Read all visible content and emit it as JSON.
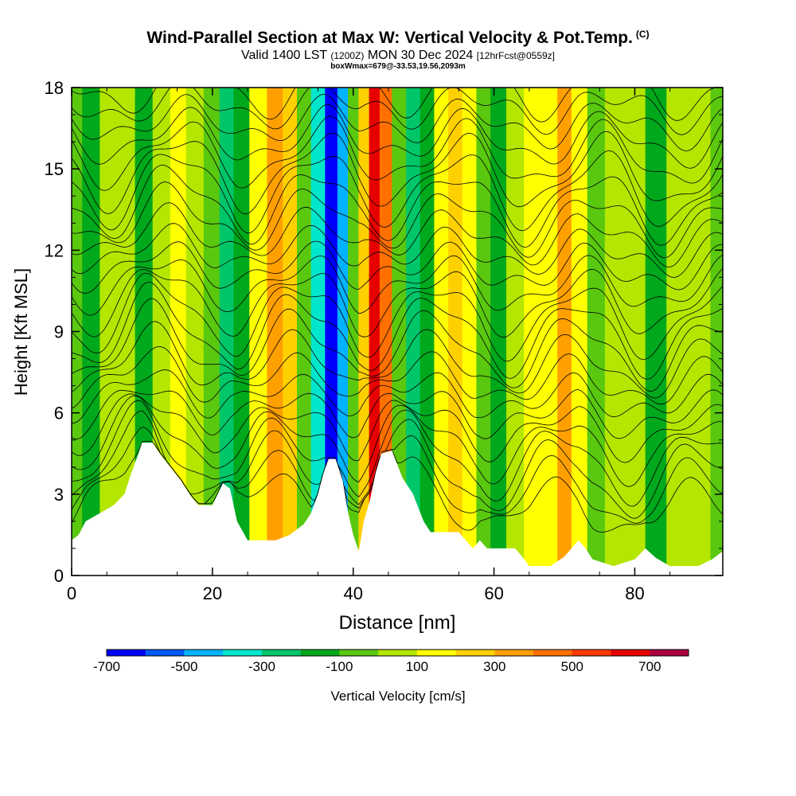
{
  "header": {
    "title": "Wind-Parallel Section at Max W: Vertical Velocity & Pot.Temp.",
    "copyright": "(C)",
    "subtitle_pre": "Valid 1400 LST ",
    "subtitle_zulu": "(1200Z)",
    "subtitle_mid": " MON 30 Dec 2024 ",
    "subtitle_fcst": "[12hrFcst@0559z]",
    "box_info": "boxWmax=679@-33.53,19.56,2093m"
  },
  "chart_data": {
    "type": "heatmap",
    "xlabel": "Distance [nm]",
    "ylabel": "Height [Kft MSL]",
    "xlim": [
      0,
      92.5
    ],
    "ylim": [
      0,
      18
    ],
    "x_ticks": [
      0,
      20,
      40,
      60,
      80
    ],
    "y_ticks": [
      0,
      3,
      6,
      9,
      12,
      15,
      18
    ],
    "colorbar": {
      "label": "Vertical Velocity [cm/s]",
      "bounds": [
        -700,
        800
      ],
      "tick_values": [
        -700,
        -500,
        -300,
        -100,
        100,
        300,
        500,
        700
      ],
      "tick_labels": [
        "-700",
        "-500",
        "-300",
        "-100",
        "100",
        "300",
        "500",
        "700"
      ],
      "colors": [
        "#0000ff",
        "#005bff",
        "#00b3ff",
        "#00e6cc",
        "#00c66a",
        "#00a81c",
        "#59c80f",
        "#b4e600",
        "#ffff00",
        "#ffd000",
        "#ffa000",
        "#ff7000",
        "#ff3a00",
        "#e60000",
        "#aa0040"
      ]
    },
    "velocity_bands": [
      {
        "x": 0,
        "value": -50
      },
      {
        "x": 3,
        "value": -150
      },
      {
        "x": 5,
        "value": 0
      },
      {
        "x": 8,
        "value": 30
      },
      {
        "x": 10,
        "value": -150
      },
      {
        "x": 13,
        "value": 50
      },
      {
        "x": 15,
        "value": 150
      },
      {
        "x": 17.5,
        "value": 80
      },
      {
        "x": 20,
        "value": -100
      },
      {
        "x": 22,
        "value": -280
      },
      {
        "x": 24,
        "value": -150
      },
      {
        "x": 26.5,
        "value": 100
      },
      {
        "x": 29,
        "value": 320
      },
      {
        "x": 31,
        "value": 200
      },
      {
        "x": 33,
        "value": -100
      },
      {
        "x": 35,
        "value": -350
      },
      {
        "x": 37,
        "value": -650
      },
      {
        "x": 38.5,
        "value": -450
      },
      {
        "x": 40,
        "value": -100
      },
      {
        "x": 41.5,
        "value": 250
      },
      {
        "x": 43,
        "value": 690
      },
      {
        "x": 44.5,
        "value": 400
      },
      {
        "x": 46.5,
        "value": -100
      },
      {
        "x": 48.5,
        "value": -300
      },
      {
        "x": 50.5,
        "value": -120
      },
      {
        "x": 52.5,
        "value": 150
      },
      {
        "x": 54.5,
        "value": 270
      },
      {
        "x": 56.5,
        "value": 120
      },
      {
        "x": 58.5,
        "value": -80
      },
      {
        "x": 60.5,
        "value": -130
      },
      {
        "x": 63,
        "value": 30
      },
      {
        "x": 65.5,
        "value": 120
      },
      {
        "x": 68,
        "value": 180
      },
      {
        "x": 70,
        "value": 300
      },
      {
        "x": 72,
        "value": 150
      },
      {
        "x": 74.5,
        "value": -80
      },
      {
        "x": 77,
        "value": 30
      },
      {
        "x": 80,
        "value": 60
      },
      {
        "x": 83,
        "value": -120
      },
      {
        "x": 86,
        "value": 10
      },
      {
        "x": 89,
        "value": 60
      },
      {
        "x": 92.5,
        "value": -60
      }
    ],
    "terrain": [
      {
        "x": 0,
        "height": 1.3
      },
      {
        "x": 1,
        "height": 1.5
      },
      {
        "x": 2,
        "height": 2.0
      },
      {
        "x": 4,
        "height": 2.3
      },
      {
        "x": 6,
        "height": 2.6
      },
      {
        "x": 7.5,
        "height": 3.0
      },
      {
        "x": 8.5,
        "height": 3.8
      },
      {
        "x": 9.5,
        "height": 4.5
      },
      {
        "x": 10,
        "height": 4.9
      },
      {
        "x": 11.5,
        "height": 4.9
      },
      {
        "x": 12.5,
        "height": 4.5
      },
      {
        "x": 14,
        "height": 4.0
      },
      {
        "x": 15.5,
        "height": 3.5
      },
      {
        "x": 17,
        "height": 2.9
      },
      {
        "x": 18,
        "height": 2.6
      },
      {
        "x": 20,
        "height": 2.6
      },
      {
        "x": 21.5,
        "height": 3.4
      },
      {
        "x": 22.5,
        "height": 3.2
      },
      {
        "x": 23.5,
        "height": 2.0
      },
      {
        "x": 25,
        "height": 1.3
      },
      {
        "x": 27,
        "height": 1.3
      },
      {
        "x": 29,
        "height": 1.3
      },
      {
        "x": 31,
        "height": 1.5
      },
      {
        "x": 33,
        "height": 1.9
      },
      {
        "x": 34,
        "height": 2.3
      },
      {
        "x": 35,
        "height": 3.0
      },
      {
        "x": 35.8,
        "height": 3.8
      },
      {
        "x": 36.5,
        "height": 4.3
      },
      {
        "x": 37.5,
        "height": 4.3
      },
      {
        "x": 38.5,
        "height": 3.5
      },
      {
        "x": 39.2,
        "height": 2.4
      },
      {
        "x": 40,
        "height": 1.5
      },
      {
        "x": 40.8,
        "height": 0.9
      },
      {
        "x": 41.5,
        "height": 2.0
      },
      {
        "x": 42.3,
        "height": 2.7
      },
      {
        "x": 43.2,
        "height": 3.8
      },
      {
        "x": 44,
        "height": 4.5
      },
      {
        "x": 45.5,
        "height": 4.6
      },
      {
        "x": 47,
        "height": 3.6
      },
      {
        "x": 48.5,
        "height": 3.0
      },
      {
        "x": 50,
        "height": 2.0
      },
      {
        "x": 51,
        "height": 1.6
      },
      {
        "x": 55,
        "height": 1.6
      },
      {
        "x": 56,
        "height": 1.3
      },
      {
        "x": 57,
        "height": 1.0
      },
      {
        "x": 58,
        "height": 1.3
      },
      {
        "x": 59,
        "height": 1.0
      },
      {
        "x": 63,
        "height": 1.0
      },
      {
        "x": 64,
        "height": 0.7
      },
      {
        "x": 65,
        "height": 0.35
      },
      {
        "x": 68,
        "height": 0.35
      },
      {
        "x": 70,
        "height": 0.7
      },
      {
        "x": 72,
        "height": 1.3
      },
      {
        "x": 73,
        "height": 1.0
      },
      {
        "x": 74,
        "height": 0.6
      },
      {
        "x": 77,
        "height": 0.35
      },
      {
        "x": 80,
        "height": 0.6
      },
      {
        "x": 81.5,
        "height": 1.0
      },
      {
        "x": 83,
        "height": 0.65
      },
      {
        "x": 85,
        "height": 0.35
      },
      {
        "x": 89,
        "height": 0.35
      },
      {
        "x": 91,
        "height": 0.6
      },
      {
        "x": 92.5,
        "height": 0.9
      }
    ],
    "theta_contours": {
      "count": 27,
      "base_height": 2.2,
      "spacing": 0.6
    }
  }
}
